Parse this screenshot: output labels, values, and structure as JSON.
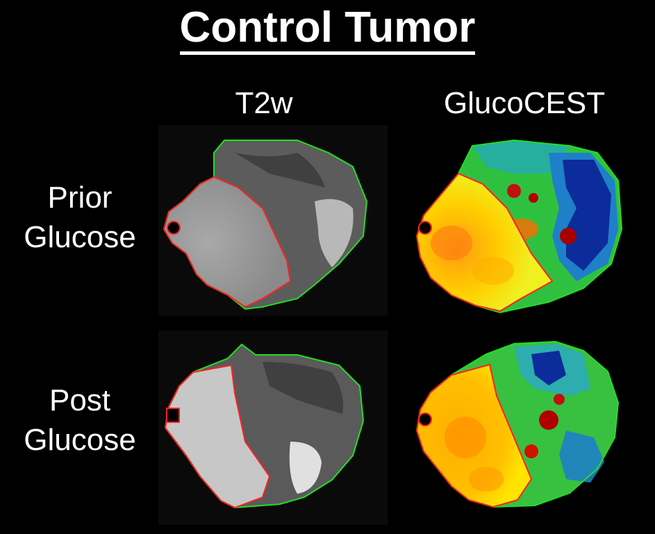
{
  "title": "Control Tumor",
  "columns": {
    "t2w": "T2w",
    "cest": "GlucoCEST"
  },
  "rows": {
    "prior_line1": "Prior",
    "prior_line2": "Glucose",
    "post_line1": "Post",
    "post_line2": "Glucose"
  },
  "colors": {
    "background": "#000000",
    "outer_contour": "#22e022",
    "inner_contour": "#ff2020",
    "cest_high": "#b00000",
    "cest_mid": "#ffe000",
    "cest_low": "#003399"
  }
}
